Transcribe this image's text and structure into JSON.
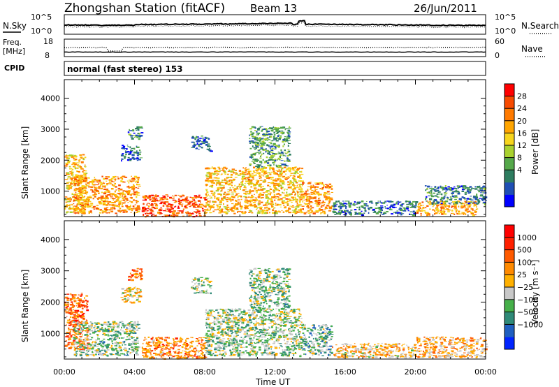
{
  "header": {
    "title": "Zhongshan Station (fitACF)",
    "beam": "Beam 13",
    "date": "26/Jun/2011"
  },
  "noise_panel": {
    "left_label": "N.Sky",
    "right_label": "N.Search",
    "left_ticks": [
      "10^5",
      "10^0"
    ],
    "right_ticks": [
      "10^5",
      "10^0"
    ]
  },
  "freq_panel": {
    "left_label_line1": "Freq.",
    "left_label_line2": "[MHz]",
    "left_ticks": [
      "18",
      "8"
    ],
    "right_label": "Nave",
    "right_ticks": [
      "60",
      "0"
    ]
  },
  "cpid_panel": {
    "label": "CPID",
    "mode": "normal (fast stereo) 153"
  },
  "power_panel": {
    "ylabel": "Slant Range [km]",
    "yticks": [
      "4000",
      "3000",
      "2000",
      "1000"
    ],
    "colorbar_label": "Power [dB]",
    "colorbar_ticks": [
      "28",
      "24",
      "20",
      "16",
      "12",
      "8",
      "4"
    ],
    "colors": [
      "#0000ff",
      "#1f4fb4",
      "#2e7d60",
      "#55a84a",
      "#a9d12f",
      "#f7d51c",
      "#ffa500",
      "#ff7a00",
      "#f84a00",
      "#ff0000"
    ]
  },
  "velocity_panel": {
    "ylabel": "Slant Range [km]",
    "yticks": [
      "4000",
      "3000",
      "2000",
      "1000"
    ],
    "colorbar_label": "Velocity [m s⁻¹]",
    "colorbar_ticks": [
      "1000",
      "500",
      "100",
      "25",
      "−25",
      "−100",
      "−500",
      "−1000"
    ],
    "colors": [
      "#0024ff",
      "#1f5fc0",
      "#2f8a78",
      "#46b04a",
      "#c8c8c8",
      "#ffb000",
      "#ff8a00",
      "#ff5a00",
      "#ff2000",
      "#ff0000"
    ]
  },
  "x_axis": {
    "label": "Time UT",
    "ticks": [
      "00:00",
      "04:00",
      "08:00",
      "12:00",
      "16:00",
      "20:00",
      "00:00"
    ]
  },
  "chart_data": {
    "type": "heatmap",
    "title": "Zhongshan Station (fitACF)",
    "xlabel": "Time UT",
    "ylabel": "Slant Range [km]",
    "xlim_hours": [
      0,
      24
    ],
    "ylim_km": [
      180,
      4600
    ],
    "panels": [
      {
        "name": "Power [dB]",
        "scale": [
          0,
          32
        ],
        "regions": [
          {
            "t0": 0.0,
            "t1": 1.2,
            "r0": 300,
            "r1": 2200,
            "mean": 20
          },
          {
            "t0": 0.5,
            "t1": 4.2,
            "r0": 300,
            "r1": 1500,
            "mean": 22
          },
          {
            "t0": 3.2,
            "t1": 4.3,
            "r0": 2000,
            "r1": 2500,
            "mean": 6
          },
          {
            "t0": 3.6,
            "t1": 4.4,
            "r0": 2700,
            "r1": 3100,
            "mean": 8
          },
          {
            "t0": 4.4,
            "t1": 8.0,
            "r0": 200,
            "r1": 900,
            "mean": 27
          },
          {
            "t0": 7.2,
            "t1": 8.3,
            "r0": 2300,
            "r1": 2800,
            "mean": 6
          },
          {
            "t0": 8.0,
            "t1": 13.5,
            "r0": 300,
            "r1": 1800,
            "mean": 20
          },
          {
            "t0": 10.5,
            "t1": 12.8,
            "r0": 1800,
            "r1": 3100,
            "mean": 10
          },
          {
            "t0": 13.5,
            "t1": 15.2,
            "r0": 300,
            "r1": 1300,
            "mean": 22
          },
          {
            "t0": 15.2,
            "t1": 20.0,
            "r0": 250,
            "r1": 700,
            "mean": 7
          },
          {
            "t0": 20.0,
            "t1": 23.5,
            "r0": 250,
            "r1": 700,
            "mean": 22
          },
          {
            "t0": 20.5,
            "t1": 24.0,
            "r0": 600,
            "r1": 1200,
            "mean": 8
          }
        ]
      },
      {
        "name": "Velocity [m s⁻¹]",
        "scale": [
          -1200,
          1200
        ],
        "regions": [
          {
            "t0": 0.0,
            "t1": 1.3,
            "r0": 500,
            "r1": 2300,
            "mean": 600
          },
          {
            "t0": 0.5,
            "t1": 4.2,
            "r0": 300,
            "r1": 1400,
            "mean": -300
          },
          {
            "t0": 3.2,
            "t1": 4.3,
            "r0": 2000,
            "r1": 2500,
            "mean": 20
          },
          {
            "t0": 3.6,
            "t1": 4.4,
            "r0": 2700,
            "r1": 3100,
            "mean": 500
          },
          {
            "t0": 4.4,
            "t1": 8.0,
            "r0": 200,
            "r1": 900,
            "mean": 400
          },
          {
            "t0": 7.2,
            "t1": 8.3,
            "r0": 2300,
            "r1": 2800,
            "mean": -200
          },
          {
            "t0": 8.0,
            "t1": 13.5,
            "r0": 300,
            "r1": 1800,
            "mean": -250
          },
          {
            "t0": 10.5,
            "t1": 12.8,
            "r0": 1800,
            "r1": 3100,
            "mean": -300
          },
          {
            "t0": 13.5,
            "t1": 15.2,
            "r0": 300,
            "r1": 1300,
            "mean": -400
          },
          {
            "t0": 15.2,
            "t1": 20.0,
            "r0": 250,
            "r1": 700,
            "mean": 150
          },
          {
            "t0": 20.0,
            "t1": 24.0,
            "r0": 250,
            "r1": 900,
            "mean": 200
          }
        ]
      }
    ]
  }
}
